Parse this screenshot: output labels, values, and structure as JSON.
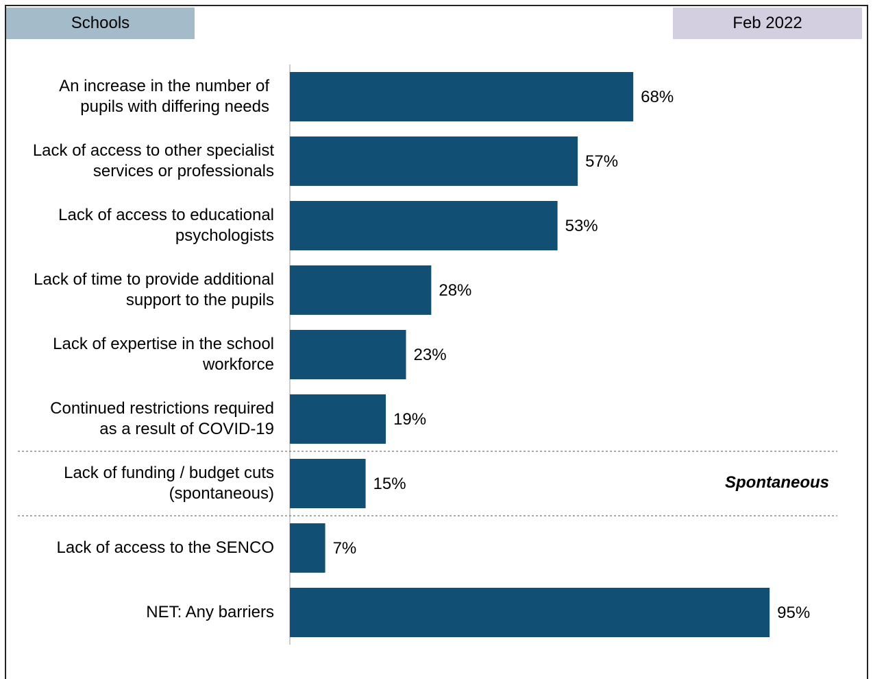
{
  "header": {
    "left_tag": "Schools",
    "right_tag": "Feb 2022"
  },
  "annotation": "Spontaneous",
  "colors": {
    "bar": "#114f74",
    "left_tag_bg": "#a4bbc9",
    "right_tag_bg": "#d4cfe0"
  },
  "chart_data": {
    "type": "bar",
    "orientation": "horizontal",
    "title": "",
    "xlabel": "",
    "ylabel": "",
    "xlim": [
      0,
      100
    ],
    "grid": false,
    "legend": "none",
    "categories": [
      [
        "An increase in the number of",
        "pupils with differing needs"
      ],
      [
        "Lack of access to other specialist",
        "services or professionals"
      ],
      [
        "Lack of access to educational",
        "psychologists"
      ],
      [
        "Lack of time to provide additional",
        "support to the pupils"
      ],
      [
        "Lack of expertise in the school",
        "workforce"
      ],
      [
        "Continued restrictions required",
        "as a result of COVID-19"
      ],
      [
        "Lack of funding / budget cuts",
        "(spontaneous)"
      ],
      [
        "Lack of access to the SENCO"
      ],
      [
        "NET: Any barriers"
      ]
    ],
    "values": [
      68,
      57,
      53,
      28,
      23,
      19,
      15,
      7,
      95
    ],
    "value_labels": [
      "68%",
      "57%",
      "53%",
      "28%",
      "23%",
      "19%",
      "15%",
      "7%",
      "95%"
    ],
    "dashed_separators_after_index": [
      5,
      6
    ]
  }
}
